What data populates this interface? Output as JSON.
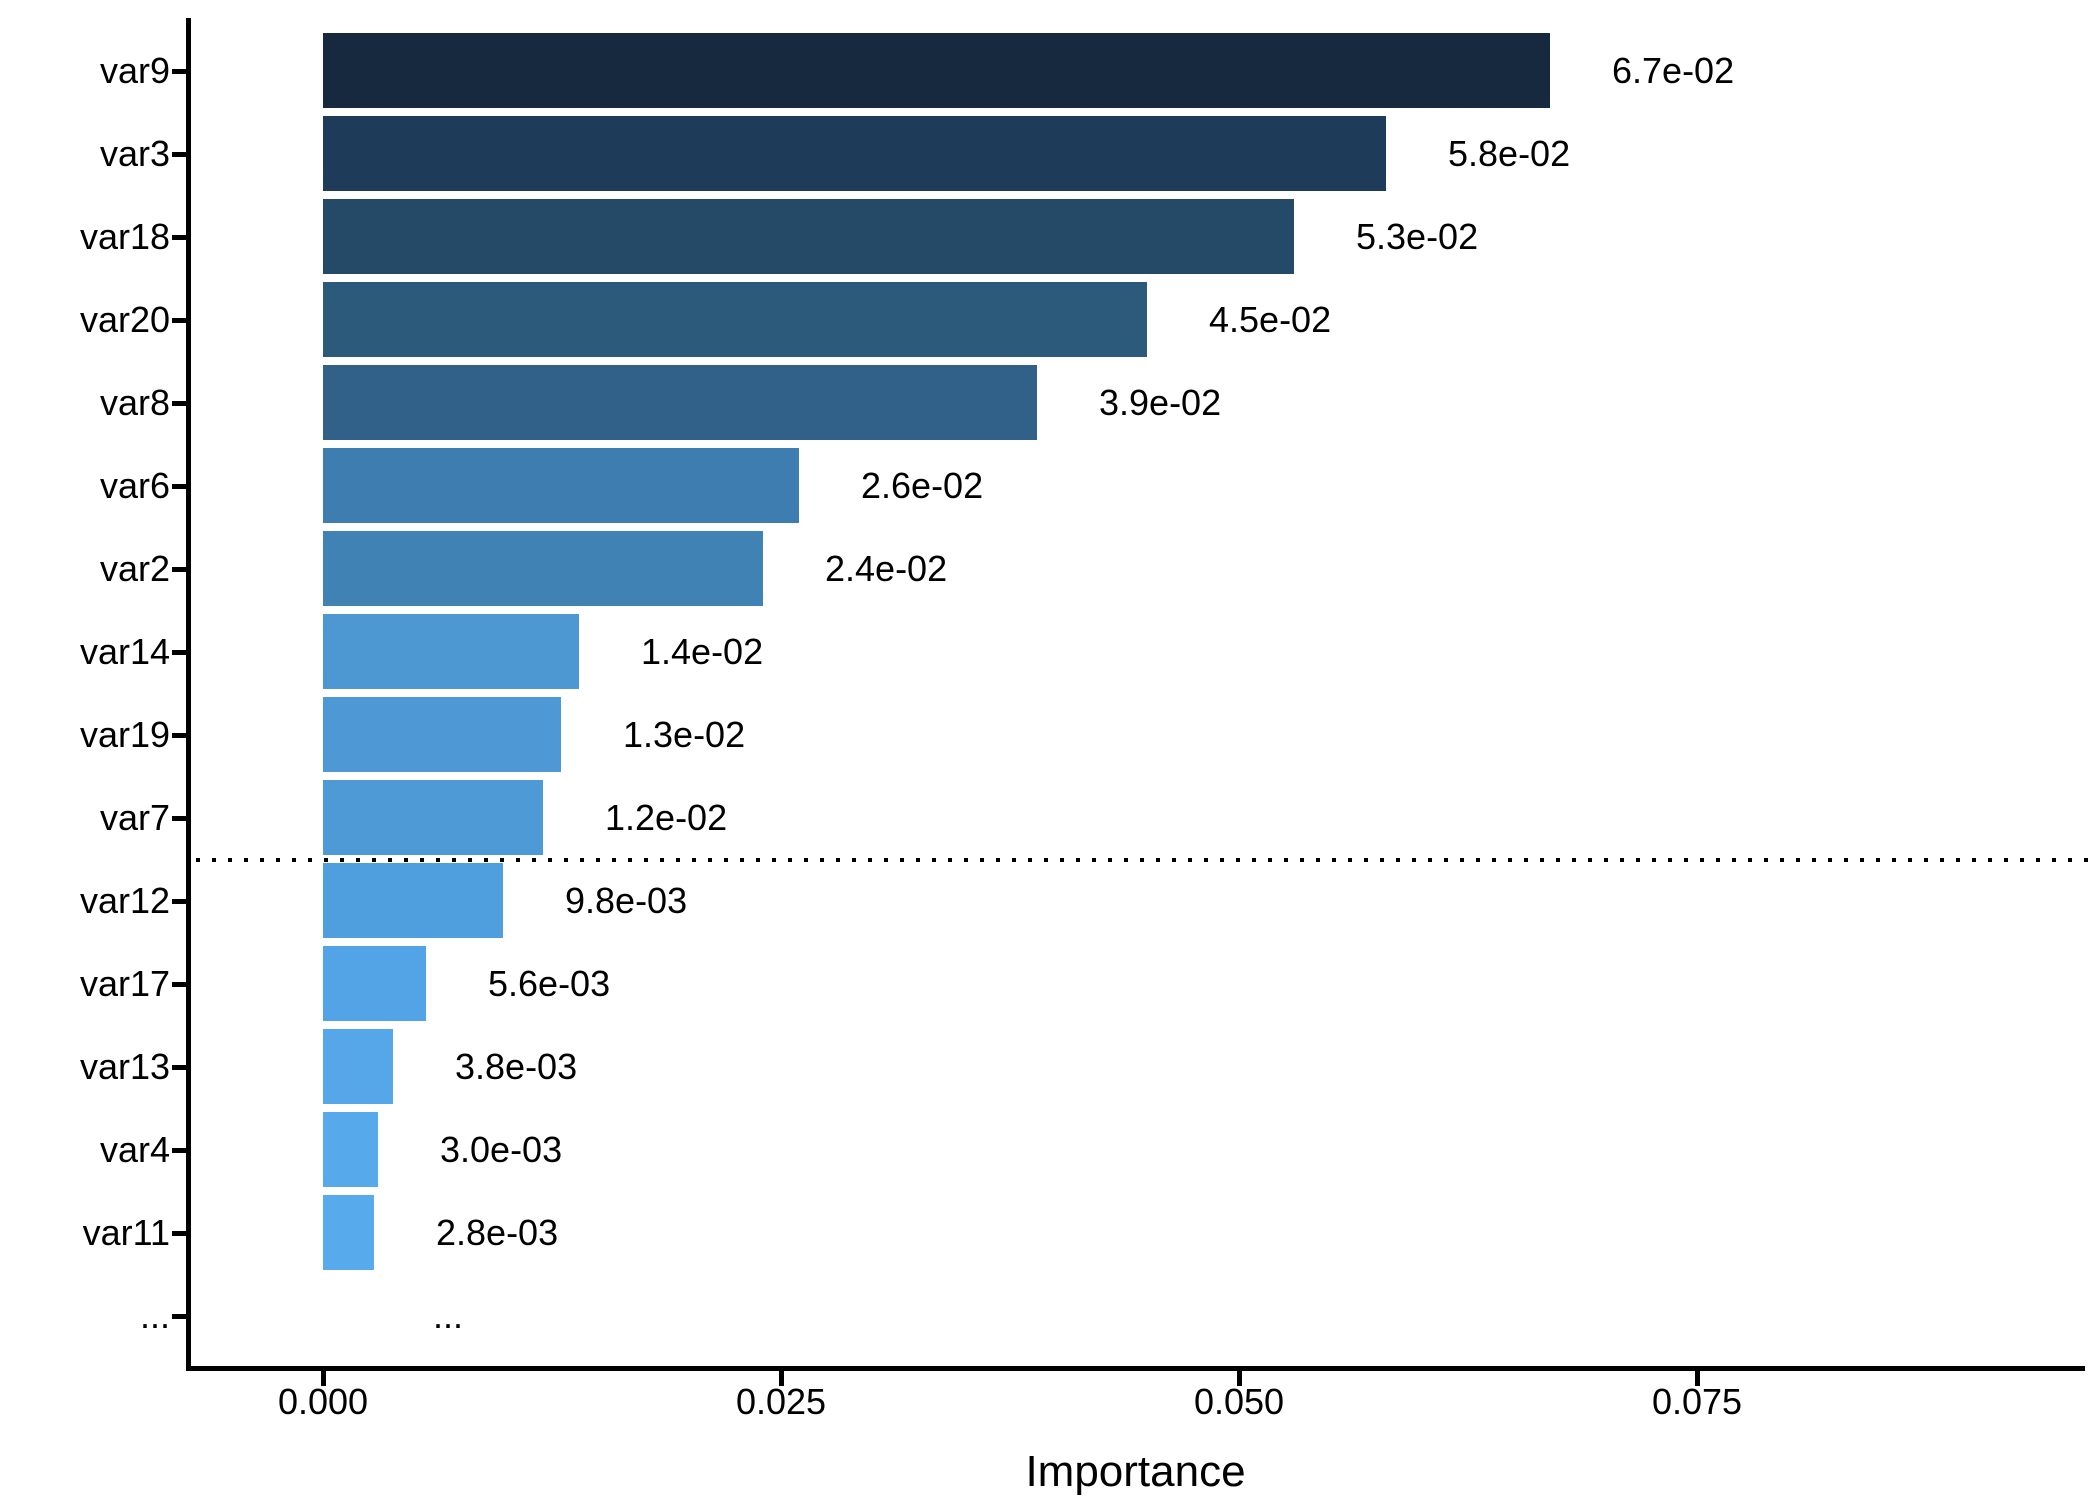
{
  "chart_data": {
    "type": "bar",
    "orientation": "horizontal",
    "title": "",
    "xlabel": "Importance",
    "ylabel": "",
    "grid": false,
    "legend": false,
    "xlim": [
      -0.0074,
      0.0962
    ],
    "x_ticks": [
      {
        "value": 0.0,
        "label": "0.000"
      },
      {
        "value": 0.025,
        "label": "0.025"
      },
      {
        "value": 0.05,
        "label": "0.050"
      },
      {
        "value": 0.075,
        "label": "0.075"
      }
    ],
    "bars": [
      {
        "category": "var9",
        "value": 0.067,
        "value_label": "6.7e-02",
        "color": "#16293F"
      },
      {
        "category": "var3",
        "value": 0.058,
        "value_label": "5.8e-02",
        "color": "#1E3C59"
      },
      {
        "category": "var18",
        "value": 0.053,
        "value_label": "5.3e-02",
        "color": "#254A68"
      },
      {
        "category": "var20",
        "value": 0.045,
        "value_label": "4.5e-02",
        "color": "#2C5A7B"
      },
      {
        "category": "var8",
        "value": 0.039,
        "value_label": "3.9e-02",
        "color": "#316189"
      },
      {
        "category": "var6",
        "value": 0.026,
        "value_label": "2.6e-02",
        "color": "#3E7DB0"
      },
      {
        "category": "var2",
        "value": 0.024,
        "value_label": "2.4e-02",
        "color": "#4182B5"
      },
      {
        "category": "var14",
        "value": 0.014,
        "value_label": "1.4e-02",
        "color": "#4D97D3"
      },
      {
        "category": "var19",
        "value": 0.013,
        "value_label": "1.3e-02",
        "color": "#4D98D5"
      },
      {
        "category": "var7",
        "value": 0.012,
        "value_label": "1.2e-02",
        "color": "#4E9AD7"
      },
      {
        "category": "var12",
        "value": 0.0098,
        "value_label": "9.8e-03",
        "color": "#4F9FDE"
      },
      {
        "category": "var17",
        "value": 0.0056,
        "value_label": "5.6e-03",
        "color": "#53A4E6"
      },
      {
        "category": "var13",
        "value": 0.0038,
        "value_label": "3.8e-03",
        "color": "#55A7E9"
      },
      {
        "category": "var4",
        "value": 0.003,
        "value_label": "3.0e-03",
        "color": "#56A9EB"
      },
      {
        "category": "var11",
        "value": 0.0028,
        "value_label": "2.8e-03",
        "color": "#57ABED"
      },
      {
        "category": "...",
        "value": null,
        "value_label": "...",
        "color": null
      }
    ],
    "threshold_line": {
      "style": "dotted",
      "color": "#000000",
      "between": [
        "var7",
        "var12"
      ]
    }
  }
}
